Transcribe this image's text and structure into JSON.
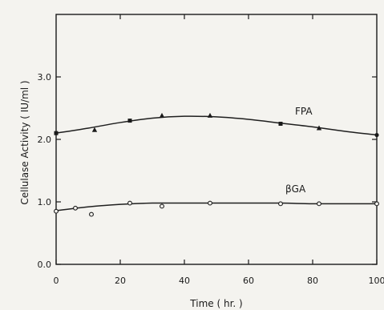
{
  "chart_data": {
    "type": "line",
    "title": "",
    "xlabel": "Time ( hr. )",
    "ylabel": "Cellulase Activity ( IU/ml )",
    "xlim": [
      0,
      100
    ],
    "ylim": [
      0,
      4.0
    ],
    "x_ticks": [
      0,
      20,
      40,
      60,
      80,
      100
    ],
    "x_tick_labels": [
      "0",
      "20",
      "40",
      "60",
      "80",
      "100"
    ],
    "y_ticks": [
      0,
      1.0,
      2.0,
      3.0
    ],
    "y_tick_labels": [
      "0.0",
      "1.0",
      "2.0",
      "3.0"
    ],
    "grid": false,
    "legend": "none",
    "series": [
      {
        "name": "FPA",
        "color": "#1f1f1f",
        "marker": "mixed-triangle-square",
        "points": [
          {
            "x": 0,
            "y": 2.1,
            "marker": "square"
          },
          {
            "x": 12,
            "y": 2.15,
            "marker": "triangle"
          },
          {
            "x": 23,
            "y": 2.3,
            "marker": "square"
          },
          {
            "x": 33,
            "y": 2.38,
            "marker": "triangle"
          },
          {
            "x": 48,
            "y": 2.38,
            "marker": "triangle"
          },
          {
            "x": 70,
            "y": 2.25,
            "marker": "square"
          },
          {
            "x": 82,
            "y": 2.18,
            "marker": "triangle"
          },
          {
            "x": 100,
            "y": 2.07,
            "marker": "circle-filled"
          }
        ],
        "curve": [
          [
            0,
            2.1
          ],
          [
            10,
            2.18
          ],
          [
            20,
            2.27
          ],
          [
            30,
            2.34
          ],
          [
            40,
            2.37
          ],
          [
            50,
            2.36
          ],
          [
            60,
            2.32
          ],
          [
            70,
            2.26
          ],
          [
            80,
            2.2
          ],
          [
            90,
            2.13
          ],
          [
            100,
            2.07
          ]
        ]
      },
      {
        "name": "βGA",
        "color": "#1f1f1f",
        "marker": "open-circle",
        "points": [
          {
            "x": 0,
            "y": 0.85
          },
          {
            "x": 6,
            "y": 0.9
          },
          {
            "x": 11,
            "y": 0.8
          },
          {
            "x": 23,
            "y": 0.98
          },
          {
            "x": 33,
            "y": 0.93
          },
          {
            "x": 48,
            "y": 0.98
          },
          {
            "x": 70,
            "y": 0.97
          },
          {
            "x": 82,
            "y": 0.97
          },
          {
            "x": 100,
            "y": 0.97
          }
        ],
        "curve": [
          [
            0,
            0.86
          ],
          [
            10,
            0.92
          ],
          [
            20,
            0.96
          ],
          [
            30,
            0.98
          ],
          [
            40,
            0.98
          ],
          [
            50,
            0.98
          ],
          [
            60,
            0.98
          ],
          [
            70,
            0.98
          ],
          [
            80,
            0.97
          ],
          [
            90,
            0.97
          ],
          [
            100,
            0.97
          ]
        ]
      }
    ],
    "labels": {
      "fpa": "FPA",
      "bga": "βGA"
    }
  }
}
